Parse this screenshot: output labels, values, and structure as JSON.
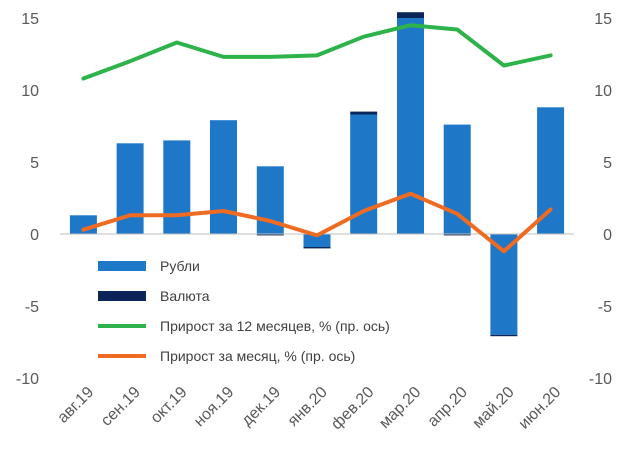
{
  "chart_data": {
    "type": "bar",
    "title": "",
    "categories": [
      "авг.19",
      "сен.19",
      "окт.19",
      "ноя.19",
      "дек.19",
      "янв.20",
      "фев.20",
      "мар.20",
      "апр.20",
      "май.20",
      "июн.20"
    ],
    "left_axis": {
      "ylim": [
        -10,
        15
      ],
      "ticks": [
        "15",
        "10",
        "5",
        "0",
        "-5",
        "-10"
      ]
    },
    "right_axis": {
      "ylim": [
        -10,
        15
      ],
      "ticks": [
        "15",
        "10",
        "5",
        "0",
        "-5",
        "-10"
      ]
    },
    "grid": false,
    "legend_position": "bottom-left (inside plot)",
    "series": [
      {
        "name": "Рубли",
        "kind": "bar",
        "axis": "left",
        "color": "#1f77c8",
        "values": [
          1.3,
          6.3,
          6.5,
          7.9,
          4.7,
          -0.9,
          8.3,
          15.0,
          7.6,
          -7.0,
          8.8
        ]
      },
      {
        "name": "Валюта",
        "kind": "bar",
        "axis": "left",
        "color": "#0b2559",
        "values": [
          0.0,
          0.0,
          0.0,
          0.0,
          -0.1,
          -0.1,
          0.2,
          0.4,
          -0.1,
          -0.1,
          0.0
        ]
      },
      {
        "name": "Прирост за 12 месяцев, % (пр. ось)",
        "kind": "line",
        "axis": "right",
        "color": "#2db34a",
        "values": [
          10.8,
          12.0,
          13.3,
          12.3,
          12.3,
          12.4,
          13.7,
          14.5,
          14.2,
          11.7,
          12.4
        ]
      },
      {
        "name": "Прирост за месяц, % (пр. ось)",
        "kind": "line",
        "axis": "right",
        "color": "#f06b22",
        "values": [
          0.3,
          1.3,
          1.3,
          1.6,
          0.9,
          -0.1,
          1.6,
          2.8,
          1.4,
          -1.2,
          1.7
        ]
      }
    ]
  }
}
